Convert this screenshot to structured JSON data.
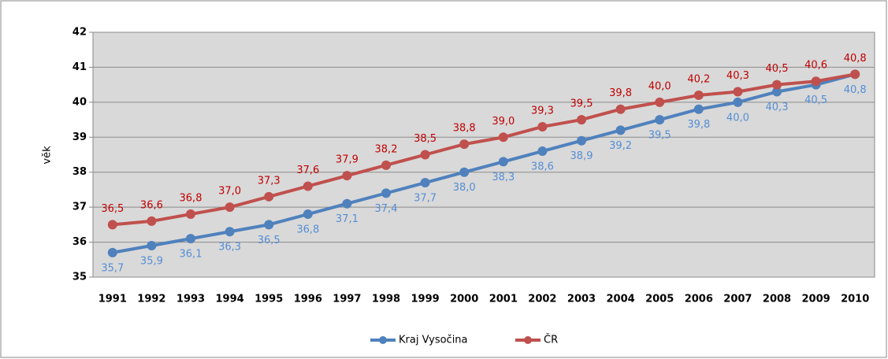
{
  "chart_data": {
    "type": "line",
    "y_label": "věk",
    "categories": [
      "1991",
      "1992",
      "1993",
      "1994",
      "1995",
      "1996",
      "1997",
      "1998",
      "1999",
      "2000",
      "2001",
      "2002",
      "2003",
      "2004",
      "2005",
      "2006",
      "2007",
      "2008",
      "2009",
      "2010"
    ],
    "series": [
      {
        "name": "Kraj Vysočina",
        "color": "#4f81bd",
        "label_color": "#558ed5",
        "values": [
          35.7,
          35.9,
          36.1,
          36.3,
          36.5,
          36.8,
          37.1,
          37.4,
          37.7,
          38.0,
          38.3,
          38.6,
          38.9,
          39.2,
          39.5,
          39.8,
          40.0,
          40.3,
          40.5,
          40.8
        ],
        "value_labels": [
          "35,7",
          "35,9",
          "36,1",
          "36,3",
          "36,5",
          "36,8",
          "37,1",
          "37,4",
          "37,7",
          "38,0",
          "38,3",
          "38,6",
          "38,9",
          "39,2",
          "39,5",
          "39,8",
          "40,0",
          "40,3",
          "40,5",
          "40,8"
        ]
      },
      {
        "name": "ČR",
        "color": "#c0504d",
        "label_color": "#c00000",
        "values": [
          36.5,
          36.6,
          36.8,
          37.0,
          37.3,
          37.6,
          37.9,
          38.2,
          38.5,
          38.8,
          39.0,
          39.3,
          39.5,
          39.8,
          40.0,
          40.2,
          40.3,
          40.5,
          40.6,
          40.8
        ],
        "value_labels": [
          "36,5",
          "36,6",
          "36,8",
          "37,0",
          "37,3",
          "37,6",
          "37,9",
          "38,2",
          "38,5",
          "38,8",
          "39,0",
          "39,3",
          "39,5",
          "39,8",
          "40,0",
          "40,2",
          "40,3",
          "40,5",
          "40,6",
          "40,8"
        ]
      }
    ],
    "ylim": [
      35,
      42
    ],
    "yticks": [
      35,
      36,
      37,
      38,
      39,
      40,
      41,
      42
    ],
    "grid": true,
    "legend": "bottom"
  }
}
